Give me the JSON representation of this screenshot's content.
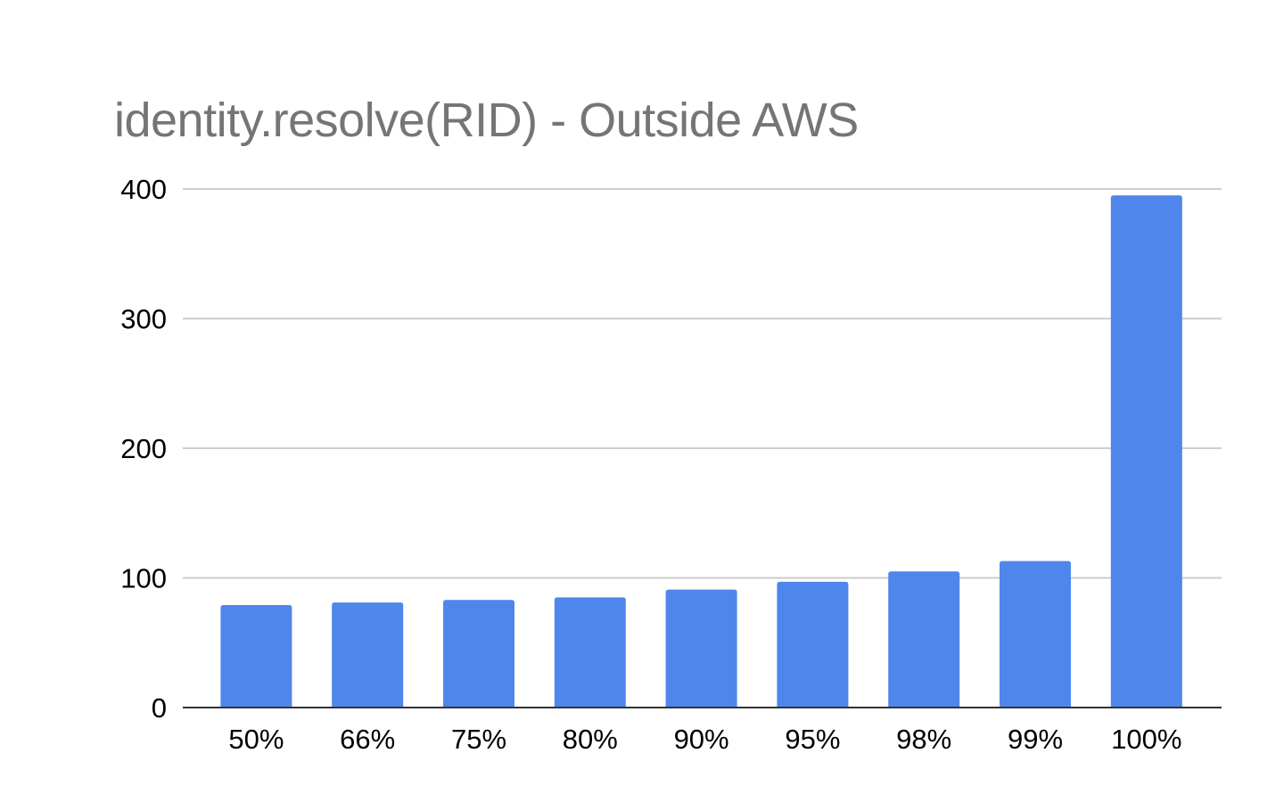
{
  "chart_data": {
    "type": "bar",
    "title": "identity.resolve(RID) - Outside AWS",
    "xlabel": "",
    "ylabel": "",
    "categories": [
      "50%",
      "66%",
      "75%",
      "80%",
      "90%",
      "95%",
      "98%",
      "99%",
      "100%"
    ],
    "series": [
      {
        "values": [
          79,
          81,
          83,
          85,
          91,
          97,
          105,
          113,
          395
        ],
        "color": "#4f86ec"
      }
    ],
    "ylim": [
      0,
      400
    ],
    "yticks": [
      0,
      100,
      200,
      300,
      400
    ],
    "ytick_labels": [
      "0",
      "100",
      "200",
      "300",
      "400"
    ],
    "grid": true,
    "legend": "none",
    "colors": {
      "bar": "#4f86ec",
      "grid": "#cccccc",
      "axis": "#333333",
      "title": "#757575"
    }
  }
}
